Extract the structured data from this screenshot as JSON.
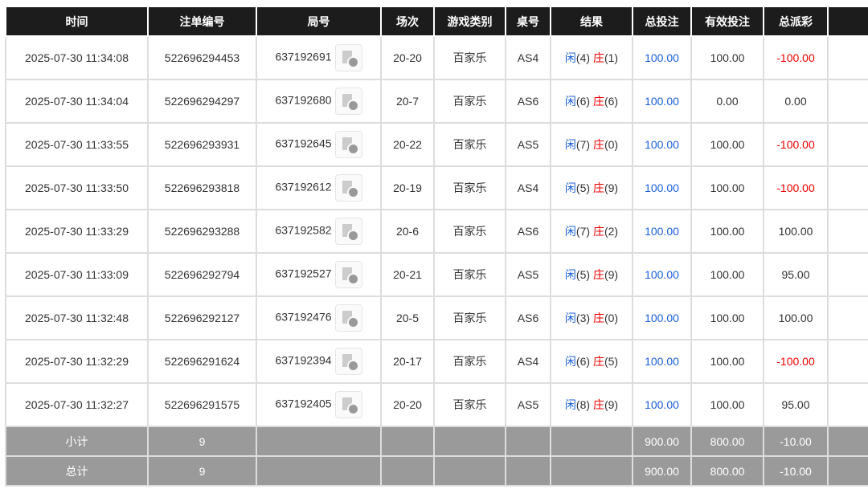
{
  "headers": [
    "时间",
    "注单编号",
    "局号",
    "场次",
    "游戏类别",
    "桌号",
    "结果",
    "总投注",
    "有效投注",
    "总派彩",
    ""
  ],
  "rows": [
    {
      "time": "2025-07-30 11:34:08",
      "bet_id": "522696294453",
      "round": "637192691",
      "session": "20-20",
      "game": "百家乐",
      "table": "AS4",
      "p_label": "闲",
      "p": "(4)",
      "b_label": "庄",
      "b": "(1)",
      "total": "100.00",
      "valid": "100.00",
      "payout": "-100.00",
      "neg": true
    },
    {
      "time": "2025-07-30 11:34:04",
      "bet_id": "522696294297",
      "round": "637192680",
      "session": "20-7",
      "game": "百家乐",
      "table": "AS6",
      "p_label": "闲",
      "p": "(6)",
      "b_label": "庄",
      "b": "(6)",
      "total": "100.00",
      "valid": "0.00",
      "payout": "0.00",
      "neg": false
    },
    {
      "time": "2025-07-30 11:33:55",
      "bet_id": "522696293931",
      "round": "637192645",
      "session": "20-22",
      "game": "百家乐",
      "table": "AS5",
      "p_label": "闲",
      "p": "(7)",
      "b_label": "庄",
      "b": "(0)",
      "total": "100.00",
      "valid": "100.00",
      "payout": "-100.00",
      "neg": true
    },
    {
      "time": "2025-07-30 11:33:50",
      "bet_id": "522696293818",
      "round": "637192612",
      "session": "20-19",
      "game": "百家乐",
      "table": "AS4",
      "p_label": "闲",
      "p": "(5)",
      "b_label": "庄",
      "b": "(9)",
      "total": "100.00",
      "valid": "100.00",
      "payout": "-100.00",
      "neg": true
    },
    {
      "time": "2025-07-30 11:33:29",
      "bet_id": "522696293288",
      "round": "637192582",
      "session": "20-6",
      "game": "百家乐",
      "table": "AS6",
      "p_label": "闲",
      "p": "(7)",
      "b_label": "庄",
      "b": "(2)",
      "total": "100.00",
      "valid": "100.00",
      "payout": "100.00",
      "neg": false
    },
    {
      "time": "2025-07-30 11:33:09",
      "bet_id": "522696292794",
      "round": "637192527",
      "session": "20-21",
      "game": "百家乐",
      "table": "AS5",
      "p_label": "闲",
      "p": "(5)",
      "b_label": "庄",
      "b": "(9)",
      "total": "100.00",
      "valid": "100.00",
      "payout": "95.00",
      "neg": false
    },
    {
      "time": "2025-07-30 11:32:48",
      "bet_id": "522696292127",
      "round": "637192476",
      "session": "20-5",
      "game": "百家乐",
      "table": "AS6",
      "p_label": "闲",
      "p": "(3)",
      "b_label": "庄",
      "b": "(0)",
      "total": "100.00",
      "valid": "100.00",
      "payout": "100.00",
      "neg": false
    },
    {
      "time": "2025-07-30 11:32:29",
      "bet_id": "522696291624",
      "round": "637192394",
      "session": "20-17",
      "game": "百家乐",
      "table": "AS4",
      "p_label": "闲",
      "p": "(6)",
      "b_label": "庄",
      "b": "(5)",
      "total": "100.00",
      "valid": "100.00",
      "payout": "-100.00",
      "neg": true
    },
    {
      "time": "2025-07-30 11:32:27",
      "bet_id": "522696291575",
      "round": "637192405",
      "session": "20-20",
      "game": "百家乐",
      "table": "AS5",
      "p_label": "闲",
      "p": "(8)",
      "b_label": "庄",
      "b": "(9)",
      "total": "100.00",
      "valid": "100.00",
      "payout": "95.00",
      "neg": false
    }
  ],
  "subtotal": {
    "label": "小计",
    "count": "9",
    "total": "900.00",
    "valid": "800.00",
    "payout": "-10.00"
  },
  "grand_total": {
    "label": "总计",
    "count": "9",
    "total": "900.00",
    "valid": "800.00",
    "payout": "-10.00"
  },
  "colors": {
    "header_bg": "#1c1c1c",
    "player": "#1a5fd8",
    "banker": "#e00000",
    "summary_bg": "#9a9a9a"
  }
}
